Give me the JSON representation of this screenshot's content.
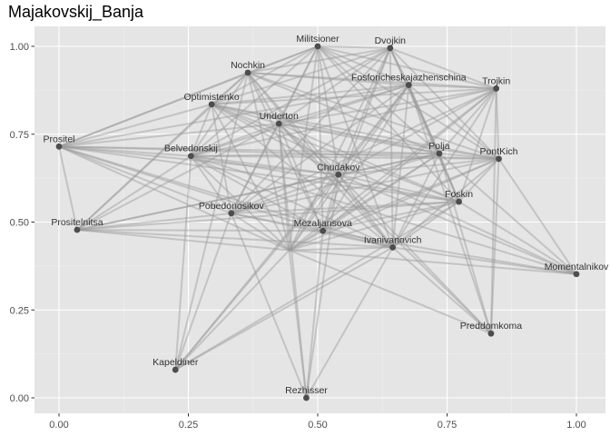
{
  "title": "Majakovskij_Banja",
  "chart_data": {
    "type": "scatter",
    "xlim": [
      -0.05,
      1.05
    ],
    "ylim": [
      -0.05,
      1.05
    ],
    "x_ticks": [
      "0.00",
      "0.25",
      "0.50",
      "0.75",
      "1.00"
    ],
    "y_ticks": [
      "0.00",
      "0.25",
      "0.50",
      "0.75",
      "1.00"
    ],
    "grid": true,
    "colors": {
      "panel": "#e5e5e5",
      "grid": "#ffffff",
      "edge": "#999999",
      "node": "#4d4d4d"
    },
    "nodes": [
      {
        "name": "Militsioner",
        "x": 0.5,
        "y": 1.0
      },
      {
        "name": "Dvojkin",
        "x": 0.64,
        "y": 0.995
      },
      {
        "name": "Nochkin",
        "x": 0.365,
        "y": 0.925
      },
      {
        "name": "Fosforicheskajazhenschina",
        "x": 0.676,
        "y": 0.89
      },
      {
        "name": "Trojkin",
        "x": 0.845,
        "y": 0.88
      },
      {
        "name": "Optimistenko",
        "x": 0.295,
        "y": 0.835
      },
      {
        "name": "Underton",
        "x": 0.425,
        "y": 0.78
      },
      {
        "name": "Prositel",
        "x": 0.0,
        "y": 0.715
      },
      {
        "name": "Polja",
        "x": 0.735,
        "y": 0.695
      },
      {
        "name": "PontKich",
        "x": 0.85,
        "y": 0.68
      },
      {
        "name": "Belvedonskij",
        "x": 0.255,
        "y": 0.688
      },
      {
        "name": "Chudakov",
        "x": 0.54,
        "y": 0.635
      },
      {
        "name": "Foskin",
        "x": 0.773,
        "y": 0.558
      },
      {
        "name": "Pobedonosikov",
        "x": 0.333,
        "y": 0.525
      },
      {
        "name": "Prositelnitsa",
        "x": 0.035,
        "y": 0.478
      },
      {
        "name": "Mezaljansova",
        "x": 0.51,
        "y": 0.475
      },
      {
        "name": "Ivanivanovich",
        "x": 0.645,
        "y": 0.428
      },
      {
        "name": "Momentalnikov",
        "x": 1.0,
        "y": 0.352
      },
      {
        "name": "Preddomkoma",
        "x": 0.835,
        "y": 0.183
      },
      {
        "name": "Kapeldiner",
        "x": 0.225,
        "y": 0.08
      },
      {
        "name": "Rezhisser",
        "x": 0.478,
        "y": 0.0
      }
    ],
    "hubs": [
      {
        "x": 0.445,
        "y": 0.42
      }
    ],
    "edges": [
      [
        "Prositel",
        "Militsioner"
      ],
      [
        "Prositel",
        "Nochkin"
      ],
      [
        "Prositel",
        "Optimistenko"
      ],
      [
        "Prositel",
        "Underton"
      ],
      [
        "Prositel",
        "Belvedonskij"
      ],
      [
        "Prositel",
        "Chudakov"
      ],
      [
        "Prositel",
        "Polja"
      ],
      [
        "Prositel",
        "PontKich"
      ],
      [
        "Prositel",
        "Prositelnitsa"
      ],
      [
        "Prositel",
        "Pobedonosikov"
      ],
      [
        "Prositel",
        "Mezaljansova"
      ],
      [
        "Prositel",
        "Ivanivanovich"
      ],
      [
        "Prositel",
        "Fosforicheskajazhenschina"
      ],
      [
        "Prositel",
        "Foskin"
      ],
      [
        "Prositelnitsa",
        "Optimistenko"
      ],
      [
        "Prositelnitsa",
        "Nochkin"
      ],
      [
        "Prositelnitsa",
        "Belvedonskij"
      ],
      [
        "Prositelnitsa",
        "Pobedonosikov"
      ],
      [
        "Prositelnitsa",
        "Mezaljansova"
      ],
      [
        "Prositelnitsa",
        "Chudakov"
      ],
      [
        "Prositelnitsa",
        "Foskin"
      ],
      [
        "Prositelnitsa",
        "Ivanivanovich"
      ],
      [
        "Prositelnitsa",
        "Polja"
      ],
      [
        "Prositelnitsa",
        "Underton"
      ],
      [
        "Militsioner",
        "Nochkin"
      ],
      [
        "Militsioner",
        "Dvojkin"
      ],
      [
        "Militsioner",
        "Optimistenko"
      ],
      [
        "Militsioner",
        "Underton"
      ],
      [
        "Militsioner",
        "Trojkin"
      ],
      [
        "Militsioner",
        "Belvedonskij"
      ],
      [
        "Militsioner",
        "Pobedonosikov"
      ],
      [
        "Militsioner",
        "Mezaljansova"
      ],
      [
        "Militsioner",
        "Polja"
      ],
      [
        "Militsioner",
        "Fosforicheskajazhenschina"
      ],
      [
        "Militsioner",
        "Ivanivanovich"
      ],
      [
        "Militsioner",
        "PontKich"
      ],
      [
        "Militsioner",
        "Chudakov"
      ],
      [
        "Militsioner",
        "Foskin"
      ],
      [
        "Dvojkin",
        "Nochkin"
      ],
      [
        "Dvojkin",
        "Optimistenko"
      ],
      [
        "Dvojkin",
        "Trojkin"
      ],
      [
        "Dvojkin",
        "Fosforicheskajazhenschina"
      ],
      [
        "Dvojkin",
        "Polja"
      ],
      [
        "Dvojkin",
        "PontKich"
      ],
      [
        "Dvojkin",
        "Underton"
      ],
      [
        "Dvojkin",
        "Chudakov"
      ],
      [
        "Dvojkin",
        "Pobedonosikov"
      ],
      [
        "Dvojkin",
        "Mezaljansova"
      ],
      [
        "Dvojkin",
        "Ivanivanovich"
      ],
      [
        "Dvojkin",
        "Foskin"
      ],
      [
        "Dvojkin",
        "Belvedonskij"
      ],
      [
        "Nochkin",
        "Optimistenko"
      ],
      [
        "Nochkin",
        "Underton"
      ],
      [
        "Nochkin",
        "Fosforicheskajazhenschina"
      ],
      [
        "Nochkin",
        "Trojkin"
      ],
      [
        "Nochkin",
        "Polja"
      ],
      [
        "Nochkin",
        "Chudakov"
      ],
      [
        "Nochkin",
        "Belvedonskij"
      ],
      [
        "Nochkin",
        "Mezaljansova"
      ],
      [
        "Nochkin",
        "Ivanivanovich"
      ],
      [
        "Nochkin",
        "PontKich"
      ],
      [
        "Nochkin",
        "Kapeldiner"
      ],
      [
        "Optimistenko",
        "Underton"
      ],
      [
        "Optimistenko",
        "Fosforicheskajazhenschina"
      ],
      [
        "Optimistenko",
        "Trojkin"
      ],
      [
        "Optimistenko",
        "Polja"
      ],
      [
        "Optimistenko",
        "PontKich"
      ],
      [
        "Optimistenko",
        "Chudakov"
      ],
      [
        "Optimistenko",
        "Belvedonskij"
      ],
      [
        "Optimistenko",
        "Pobedonosikov"
      ],
      [
        "Optimistenko",
        "Foskin"
      ],
      [
        "Optimistenko",
        "Ivanivanovich"
      ],
      [
        "Optimistenko",
        "Momentalnikov"
      ],
      [
        "Underton",
        "Fosforicheskajazhenschina"
      ],
      [
        "Underton",
        "Trojkin"
      ],
      [
        "Underton",
        "Polja"
      ],
      [
        "Underton",
        "PontKich"
      ],
      [
        "Underton",
        "Chudakov"
      ],
      [
        "Underton",
        "Belvedonskij"
      ],
      [
        "Underton",
        "Pobedonosikov"
      ],
      [
        "Underton",
        "Mezaljansova"
      ],
      [
        "Underton",
        "Ivanivanovich"
      ],
      [
        "Underton",
        "Foskin"
      ],
      [
        "Underton",
        "Rezhisser"
      ],
      [
        "Underton",
        "Preddomkoma"
      ],
      [
        "Fosforicheskajazhenschina",
        "Trojkin"
      ],
      [
        "Fosforicheskajazhenschina",
        "Polja"
      ],
      [
        "Fosforicheskajazhenschina",
        "PontKich"
      ],
      [
        "Fosforicheskajazhenschina",
        "Chudakov"
      ],
      [
        "Fosforicheskajazhenschina",
        "Belvedonskij"
      ],
      [
        "Fosforicheskajazhenschina",
        "Pobedonosikov"
      ],
      [
        "Fosforicheskajazhenschina",
        "Mezaljansova"
      ],
      [
        "Fosforicheskajazhenschina",
        "Ivanivanovich"
      ],
      [
        "Fosforicheskajazhenschina",
        "Foskin"
      ],
      [
        "Fosforicheskajazhenschina",
        "Preddomkoma"
      ],
      [
        "Fosforicheskajazhenschina",
        "Kapeldiner"
      ],
      [
        "Trojkin",
        "Polja"
      ],
      [
        "Trojkin",
        "PontKich"
      ],
      [
        "Trojkin",
        "Chudakov"
      ],
      [
        "Trojkin",
        "Belvedonskij"
      ],
      [
        "Trojkin",
        "Pobedonosikov"
      ],
      [
        "Trojkin",
        "Mezaljansova"
      ],
      [
        "Trojkin",
        "Ivanivanovich"
      ],
      [
        "Trojkin",
        "Foskin"
      ],
      [
        "Trojkin",
        "Preddomkoma"
      ],
      [
        "Polja",
        "PontKich"
      ],
      [
        "Polja",
        "Chudakov"
      ],
      [
        "Polja",
        "Belvedonskij"
      ],
      [
        "Polja",
        "Pobedonosikov"
      ],
      [
        "Polja",
        "Mezaljansova"
      ],
      [
        "Polja",
        "Ivanivanovich"
      ],
      [
        "Polja",
        "Foskin"
      ],
      [
        "Polja",
        "Momentalnikov"
      ],
      [
        "Polja",
        "Preddomkoma"
      ],
      [
        "PontKich",
        "Chudakov"
      ],
      [
        "PontKich",
        "Belvedonskij"
      ],
      [
        "PontKich",
        "Pobedonosikov"
      ],
      [
        "PontKich",
        "Mezaljansova"
      ],
      [
        "PontKich",
        "Ivanivanovich"
      ],
      [
        "PontKich",
        "Foskin"
      ],
      [
        "PontKich",
        "Momentalnikov"
      ],
      [
        "PontKich",
        "Preddomkoma"
      ],
      [
        "Belvedonskij",
        "Chudakov"
      ],
      [
        "Belvedonskij",
        "Pobedonosikov"
      ],
      [
        "Belvedonskij",
        "Mezaljansova"
      ],
      [
        "Belvedonskij",
        "Ivanivanovich"
      ],
      [
        "Belvedonskij",
        "Foskin"
      ],
      [
        "Belvedonskij",
        "Momentalnikov"
      ],
      [
        "Belvedonskij",
        "Kapeldiner"
      ],
      [
        "Chudakov",
        "Pobedonosikov"
      ],
      [
        "Chudakov",
        "Mezaljansova"
      ],
      [
        "Chudakov",
        "Ivanivanovich"
      ],
      [
        "Chudakov",
        "Foskin"
      ],
      [
        "Chudakov",
        "Momentalnikov"
      ],
      [
        "Chudakov",
        "Preddomkoma"
      ],
      [
        "Chudakov",
        "Kapeldiner"
      ],
      [
        "Chudakov",
        "Rezhisser"
      ],
      [
        "Pobedonosikov",
        "Mezaljansova"
      ],
      [
        "Pobedonosikov",
        "Ivanivanovich"
      ],
      [
        "Pobedonosikov",
        "Foskin"
      ],
      [
        "Pobedonosikov",
        "Kapeldiner"
      ],
      [
        "Pobedonosikov",
        "Rezhisser"
      ],
      [
        "Mezaljansova",
        "Ivanivanovich"
      ],
      [
        "Mezaljansova",
        "Foskin"
      ],
      [
        "Mezaljansova",
        "Rezhisser"
      ],
      [
        "Mezaljansova",
        "Momentalnikov"
      ],
      [
        "Ivanivanovich",
        "Foskin"
      ],
      [
        "Ivanivanovich",
        "Momentalnikov"
      ],
      [
        "Ivanivanovich",
        "Kapeldiner"
      ],
      [
        "Ivanivanovich",
        "Rezhisser"
      ],
      [
        "Ivanivanovich",
        "Preddomkoma"
      ],
      [
        "Foskin",
        "Momentalnikov"
      ],
      [
        "Foskin",
        "Kapeldiner"
      ]
    ],
    "hub_edges": [
      "Militsioner",
      "Dvojkin",
      "Nochkin",
      "Optimistenko",
      "Underton",
      "Fosforicheskajazhenschina",
      "Trojkin",
      "Prositel",
      "Polja",
      "PontKich",
      "Belvedonskij",
      "Chudakov",
      "Foskin",
      "Pobedonosikov",
      "Prositelnitsa",
      "Mezaljansova",
      "Ivanivanovich",
      "Momentalnikov",
      "Preddomkoma",
      "Kapeldiner",
      "Rezhisser"
    ]
  }
}
